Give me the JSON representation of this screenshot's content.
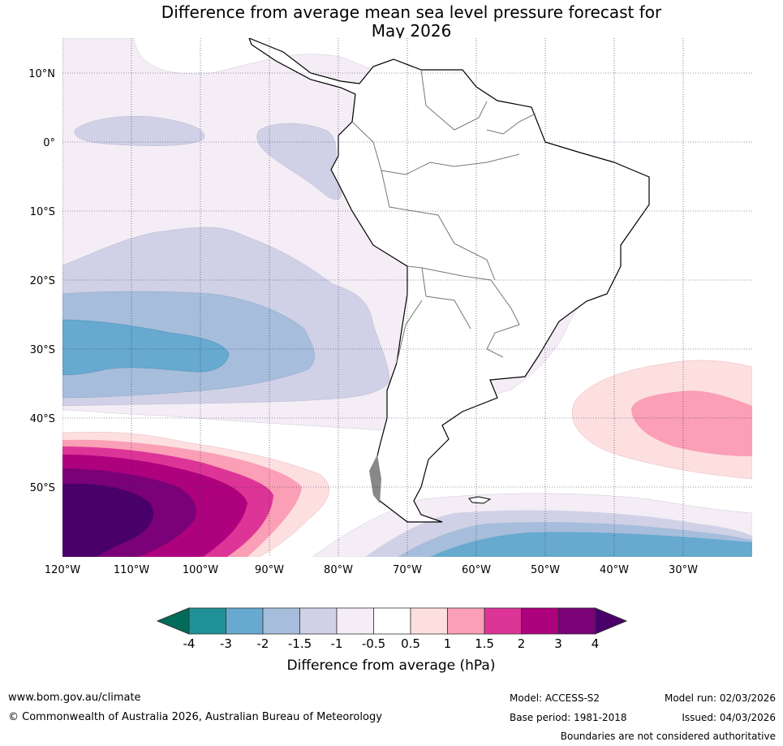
{
  "title_line1": "Difference from average mean sea level pressure forecast for",
  "title_line2": "May 2026",
  "map": {
    "lat_labels": [
      {
        "lat": 10,
        "label": "10°N"
      },
      {
        "lat": 0,
        "label": "0°"
      },
      {
        "lat": -10,
        "label": "10°S"
      },
      {
        "lat": -20,
        "label": "20°S"
      },
      {
        "lat": -30,
        "label": "30°S"
      },
      {
        "lat": -40,
        "label": "40°S"
      },
      {
        "lat": -50,
        "label": "50°S"
      }
    ],
    "lon_labels": [
      {
        "lon": -120,
        "label": "120°W"
      },
      {
        "lon": -110,
        "label": "110°W"
      },
      {
        "lon": -100,
        "label": "100°W"
      },
      {
        "lon": -90,
        "label": "90°W"
      },
      {
        "lon": -80,
        "label": "80°W"
      },
      {
        "lon": -70,
        "label": "70°W"
      },
      {
        "lon": -60,
        "label": "60°W"
      },
      {
        "lon": -50,
        "label": "50°W"
      },
      {
        "lon": -40,
        "label": "40°W"
      },
      {
        "lon": -30,
        "label": "30°W"
      }
    ],
    "extent": {
      "lon": [
        -120,
        -20
      ],
      "lat": [
        -60,
        15
      ]
    }
  },
  "colorbar": {
    "label": "Difference from average (hPa)",
    "ticks": [
      "-4",
      "-3",
      "-2",
      "-1.5",
      "-1",
      "-0.5",
      "0.5",
      "1",
      "1.5",
      "2",
      "3",
      "4"
    ],
    "colors": [
      "#1f9196",
      "#67a9cf",
      "#a6bddb",
      "#d0d1e6",
      "#f4edf5",
      "#ffffff",
      "#fddfe0",
      "#fa9fb5",
      "#dd3497",
      "#ae017e",
      "#7a0177",
      "#49006a"
    ],
    "under_color": "#016c59",
    "over_color": "#49006a"
  },
  "footer": {
    "website": "www.bom.gov.au/climate",
    "copyright": "© Commonwealth of Australia 2026, Australian Bureau of Meteorology",
    "model": "Model: ACCESS-S2",
    "base_period": "Base period: 1981-2018",
    "model_run": "Model run: 02/03/2026",
    "issued": "Issued: 04/03/2026",
    "disclaimer": "Boundaries are not considered authoritative"
  }
}
